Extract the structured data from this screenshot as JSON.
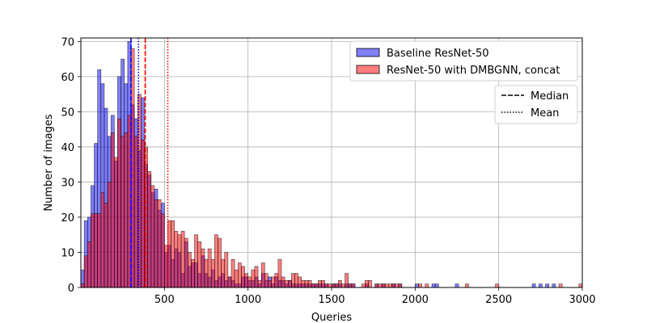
{
  "chart_data": {
    "type": "histogram",
    "xlabel": "Queries",
    "ylabel": "Number of images",
    "xlim": [
      0,
      3000
    ],
    "ylim": [
      0,
      71
    ],
    "bin_width": 20,
    "grid": true,
    "xticks": [
      500,
      1000,
      1500,
      2000,
      2500,
      3000
    ],
    "yticks": [
      0,
      10,
      20,
      30,
      40,
      50,
      60,
      70
    ],
    "series": [
      {
        "name": "Baseline ResNet-50",
        "color": "#0000ff",
        "median": 300,
        "mean": 345,
        "bins": [
          [
            0,
            5
          ],
          [
            20,
            19
          ],
          [
            40,
            20
          ],
          [
            60,
            29
          ],
          [
            80,
            41
          ],
          [
            100,
            62
          ],
          [
            120,
            58
          ],
          [
            140,
            51
          ],
          [
            160,
            43
          ],
          [
            180,
            49
          ],
          [
            200,
            36
          ],
          [
            220,
            60
          ],
          [
            240,
            65
          ],
          [
            260,
            58
          ],
          [
            280,
            70
          ],
          [
            300,
            52
          ],
          [
            320,
            48
          ],
          [
            340,
            39
          ],
          [
            360,
            54
          ],
          [
            380,
            35
          ],
          [
            400,
            32
          ],
          [
            420,
            27
          ],
          [
            440,
            28
          ],
          [
            460,
            22
          ],
          [
            480,
            24
          ],
          [
            500,
            10
          ],
          [
            520,
            12
          ],
          [
            540,
            8
          ],
          [
            560,
            11
          ],
          [
            580,
            10
          ],
          [
            600,
            4
          ],
          [
            620,
            13
          ],
          [
            640,
            6
          ],
          [
            660,
            7
          ],
          [
            680,
            7
          ],
          [
            700,
            4
          ],
          [
            720,
            9
          ],
          [
            740,
            4
          ],
          [
            760,
            3
          ],
          [
            780,
            5
          ],
          [
            800,
            2
          ],
          [
            820,
            3
          ],
          [
            840,
            4
          ],
          [
            860,
            2
          ],
          [
            880,
            3
          ],
          [
            900,
            2
          ],
          [
            920,
            1
          ],
          [
            940,
            1
          ],
          [
            960,
            3
          ],
          [
            980,
            3
          ],
          [
            1000,
            2
          ],
          [
            1020,
            2
          ],
          [
            1040,
            3
          ],
          [
            1060,
            1
          ],
          [
            1080,
            4
          ],
          [
            1100,
            2
          ],
          [
            1120,
            3
          ],
          [
            1140,
            1
          ],
          [
            1160,
            3
          ],
          [
            1180,
            2
          ],
          [
            1200,
            2
          ],
          [
            1220,
            1
          ],
          [
            1240,
            2
          ],
          [
            1260,
            1
          ],
          [
            1280,
            1
          ],
          [
            1300,
            1
          ],
          [
            1320,
            1
          ],
          [
            1340,
            1
          ],
          [
            1360,
            1
          ],
          [
            1380,
            1
          ],
          [
            1400,
            1
          ],
          [
            1420,
            1
          ],
          [
            1440,
            1
          ],
          [
            1460,
            1
          ],
          [
            1500,
            1
          ],
          [
            1520,
            1
          ],
          [
            1540,
            1
          ],
          [
            1580,
            1
          ],
          [
            1600,
            1
          ],
          [
            1620,
            1
          ],
          [
            1700,
            1
          ],
          [
            1760,
            1
          ],
          [
            1800,
            1
          ],
          [
            1860,
            1
          ],
          [
            1900,
            1
          ],
          [
            2000,
            1
          ],
          [
            2100,
            1
          ],
          [
            2120,
            1
          ],
          [
            2240,
            1
          ],
          [
            2700,
            1
          ],
          [
            2740,
            1
          ],
          [
            2780,
            1
          ],
          [
            2820,
            1
          ]
        ]
      },
      {
        "name": "ResNet-50 with DMBGNN, concat",
        "color": "#ff0000",
        "median": 385,
        "mean": 520,
        "bins": [
          [
            0,
            1
          ],
          [
            20,
            9
          ],
          [
            40,
            13
          ],
          [
            60,
            21
          ],
          [
            80,
            21
          ],
          [
            100,
            21
          ],
          [
            120,
            27
          ],
          [
            140,
            24
          ],
          [
            160,
            30
          ],
          [
            180,
            44
          ],
          [
            200,
            37
          ],
          [
            220,
            48
          ],
          [
            240,
            43
          ],
          [
            260,
            44
          ],
          [
            280,
            49
          ],
          [
            300,
            68
          ],
          [
            320,
            43
          ],
          [
            340,
            55
          ],
          [
            360,
            42
          ],
          [
            380,
            40
          ],
          [
            400,
            33
          ],
          [
            420,
            29
          ],
          [
            440,
            25
          ],
          [
            460,
            25
          ],
          [
            480,
            21
          ],
          [
            500,
            12
          ],
          [
            520,
            19
          ],
          [
            540,
            19
          ],
          [
            560,
            16
          ],
          [
            580,
            15
          ],
          [
            600,
            16
          ],
          [
            620,
            14
          ],
          [
            640,
            10
          ],
          [
            660,
            8
          ],
          [
            680,
            15
          ],
          [
            700,
            13
          ],
          [
            720,
            11
          ],
          [
            740,
            8
          ],
          [
            760,
            11
          ],
          [
            780,
            8
          ],
          [
            800,
            15
          ],
          [
            820,
            14
          ],
          [
            840,
            8
          ],
          [
            860,
            10
          ],
          [
            880,
            3
          ],
          [
            900,
            8
          ],
          [
            920,
            5
          ],
          [
            940,
            7
          ],
          [
            960,
            6
          ],
          [
            980,
            4
          ],
          [
            1000,
            3
          ],
          [
            1020,
            5
          ],
          [
            1040,
            6
          ],
          [
            1060,
            2
          ],
          [
            1080,
            7
          ],
          [
            1100,
            4
          ],
          [
            1120,
            2
          ],
          [
            1140,
            3
          ],
          [
            1160,
            4
          ],
          [
            1180,
            8
          ],
          [
            1200,
            3
          ],
          [
            1220,
            2
          ],
          [
            1240,
            2
          ],
          [
            1260,
            4
          ],
          [
            1280,
            4
          ],
          [
            1300,
            3
          ],
          [
            1320,
            2
          ],
          [
            1340,
            2
          ],
          [
            1360,
            2
          ],
          [
            1380,
            1
          ],
          [
            1400,
            1
          ],
          [
            1420,
            2
          ],
          [
            1440,
            2
          ],
          [
            1460,
            1
          ],
          [
            1480,
            1
          ],
          [
            1500,
            1
          ],
          [
            1520,
            1
          ],
          [
            1540,
            2
          ],
          [
            1560,
            1
          ],
          [
            1580,
            4
          ],
          [
            1600,
            1
          ],
          [
            1620,
            1
          ],
          [
            1680,
            1
          ],
          [
            1700,
            2
          ],
          [
            1720,
            2
          ],
          [
            1760,
            1
          ],
          [
            1780,
            1
          ],
          [
            1800,
            1
          ],
          [
            1820,
            1
          ],
          [
            1840,
            1
          ],
          [
            1860,
            1
          ],
          [
            1880,
            1
          ],
          [
            1900,
            1
          ],
          [
            2020,
            1
          ],
          [
            2060,
            1
          ],
          [
            2300,
            1
          ],
          [
            2480,
            1
          ],
          [
            2860,
            1
          ],
          [
            2980,
            1
          ]
        ]
      }
    ],
    "legend_lines": [
      {
        "label": "Median",
        "style": "dashed"
      },
      {
        "label": "Mean",
        "style": "dotted"
      }
    ]
  }
}
